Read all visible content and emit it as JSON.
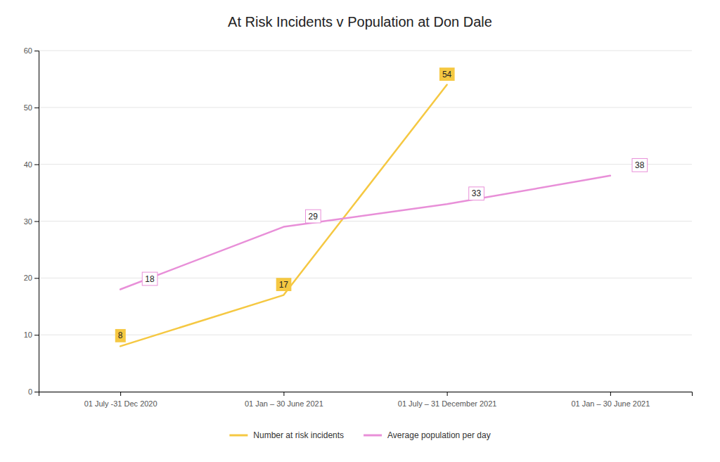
{
  "chart_data": {
    "type": "line",
    "title": "At Risk Incidents v Population at Don Dale",
    "categories": [
      "01 July -31 Dec 2020",
      "01 Jan – 30 June 2021",
      "01 July – 31 December 2021",
      "01 Jan – 30 June 2021"
    ],
    "series": [
      {
        "name": "Number at risk incidents",
        "color": "#F5C842",
        "values": [
          8,
          17,
          54,
          null
        ]
      },
      {
        "name": "Average population per day",
        "color": "#E88FD8",
        "values": [
          18,
          29,
          33,
          38
        ]
      }
    ],
    "ylim": [
      0,
      60
    ],
    "yticks": [
      0,
      10,
      20,
      30,
      40,
      50,
      60
    ],
    "grid": true,
    "legend": "bottom",
    "data_labels": true
  }
}
